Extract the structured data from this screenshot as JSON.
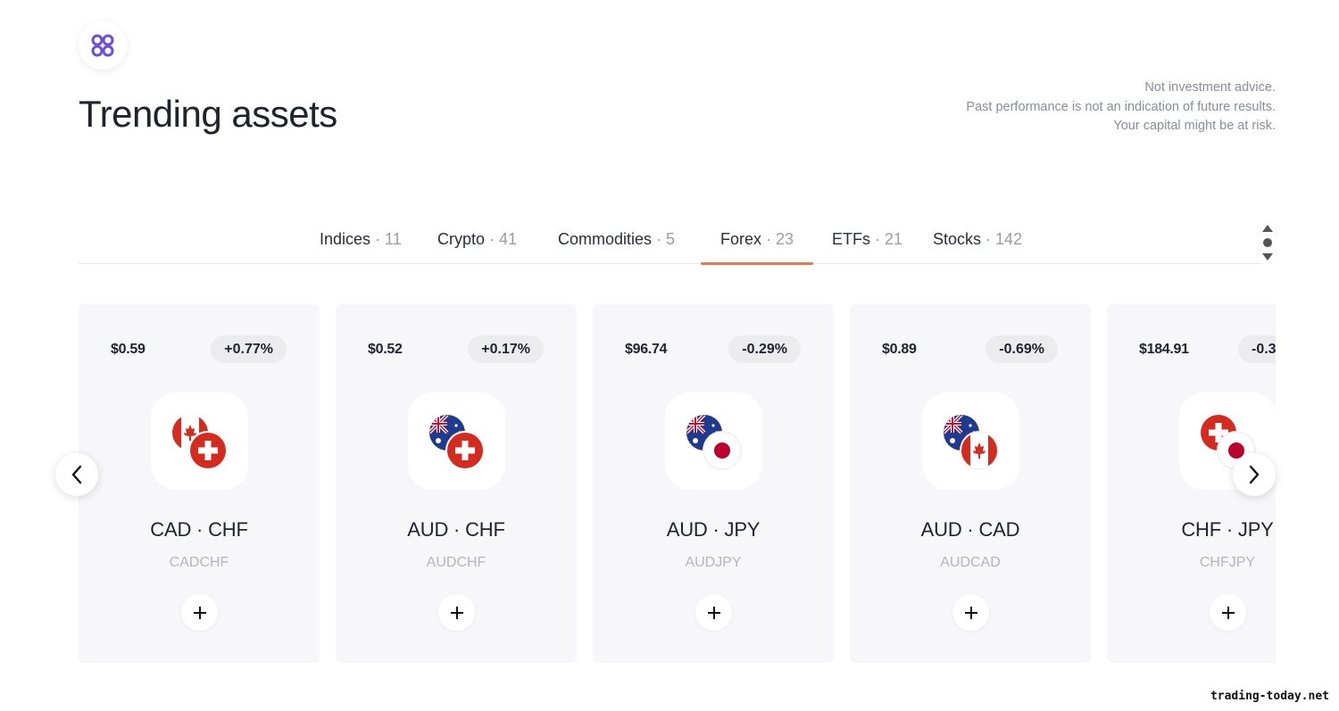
{
  "header": {
    "logo_icon": "four-circles-icon",
    "title": "Trending assets",
    "disclaimer": [
      "Not investment advice.",
      "Past performance is not an indication of future results.",
      "Your capital might be at risk."
    ]
  },
  "tabs": [
    {
      "label": "Indices",
      "count": "· 11",
      "active": false
    },
    {
      "label": "Crypto",
      "count": "· 41",
      "active": false
    },
    {
      "label": "Commodities",
      "count": "· 5",
      "active": false
    },
    {
      "label": "Forex",
      "count": "· 23",
      "active": true
    },
    {
      "label": "ETFs",
      "count": "· 21",
      "active": false
    },
    {
      "label": "Stocks",
      "count": "· 142",
      "active": false
    }
  ],
  "cards": [
    {
      "price": "$0.59",
      "change": "+0.77%",
      "pair": "CAD · CHF",
      "ticker": "CADCHF",
      "flags": [
        "canada-flag-icon",
        "switzerland-flag-icon"
      ]
    },
    {
      "price": "$0.52",
      "change": "+0.17%",
      "pair": "AUD · CHF",
      "ticker": "AUDCHF",
      "flags": [
        "australia-flag-icon",
        "switzerland-flag-icon"
      ]
    },
    {
      "price": "$96.74",
      "change": "-0.29%",
      "pair": "AUD · JPY",
      "ticker": "AUDJPY",
      "flags": [
        "australia-flag-icon",
        "japan-flag-icon"
      ]
    },
    {
      "price": "$0.89",
      "change": "-0.69%",
      "pair": "AUD · CAD",
      "ticker": "AUDCAD",
      "flags": [
        "australia-flag-icon",
        "canada-flag-icon"
      ]
    },
    {
      "price": "$184.91",
      "change": "-0.3",
      "pair": "CHF · JPY",
      "ticker": "CHFJPY",
      "flags": [
        "switzerland-flag-icon",
        "japan-flag-icon"
      ]
    }
  ],
  "colors": {
    "accent": "#e9774f",
    "logo": "#6b4fd8",
    "card_bg": "#f7f7f9"
  },
  "watermark": "trading-today.net"
}
